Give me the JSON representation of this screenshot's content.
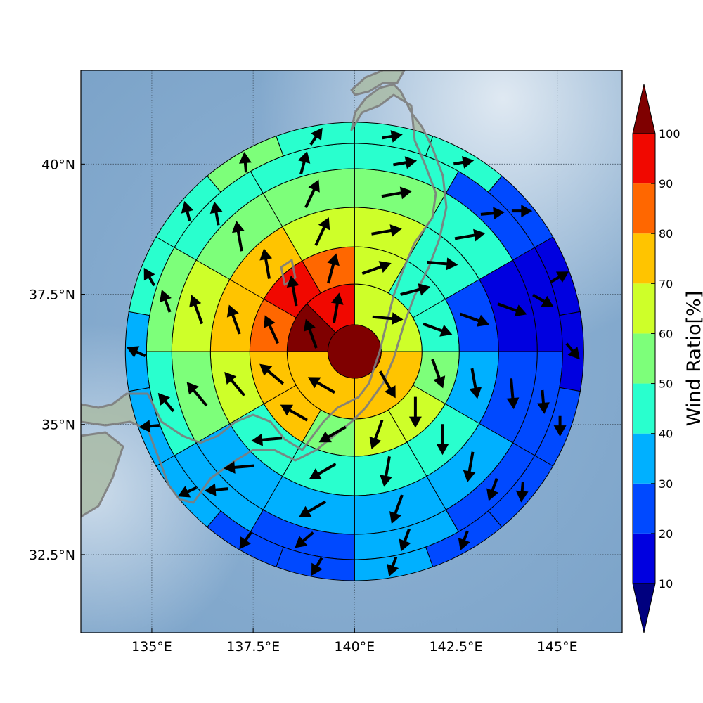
{
  "chart_data": {
    "type": "heatmap",
    "title": "",
    "xlabel": "",
    "ylabel": "",
    "projection": "polar sector grid over map",
    "center": {
      "lon": 140.0,
      "lat": 36.4
    },
    "xlim": [
      133.25,
      146.6
    ],
    "ylim": [
      31.0,
      41.8
    ],
    "x_ticks": [
      135,
      137.5,
      140,
      142.5,
      145
    ],
    "x_tick_labels": [
      "135°E",
      "137.5°E",
      "140°E",
      "142.5°E",
      "145°E"
    ],
    "y_ticks": [
      32.5,
      35,
      37.5,
      40
    ],
    "y_tick_labels": [
      "32.5°N",
      "35°N",
      "37.5°N",
      "40°N"
    ],
    "grid": true,
    "colorbar": {
      "label": "Wind Ratio[%]",
      "ticks": [
        10,
        20,
        30,
        40,
        50,
        60,
        70,
        80,
        90,
        100
      ],
      "tick_labels": [
        "10",
        "20",
        "30",
        "40",
        "50",
        "60",
        "70",
        "80",
        "90",
        "100"
      ],
      "extend": "both",
      "colors": [
        "#00007f",
        "#0000e0",
        "#0049ff",
        "#00b0ff",
        "#29ffce",
        "#7dff7a",
        "#ceff29",
        "#ffc400",
        "#ff6700",
        "#f10800",
        "#7f0000"
      ]
    },
    "center_cell": {
      "value": 100,
      "direction_deg": null
    },
    "rings": [
      {
        "ring": 1,
        "sectors": [
          {
            "bearing_start": 0,
            "bearing_end": 90,
            "value": 65,
            "direction_deg": 95
          },
          {
            "bearing_start": 90,
            "bearing_end": 180,
            "value": 75,
            "direction_deg": 150
          },
          {
            "bearing_start": 180,
            "bearing_end": 270,
            "value": 75,
            "direction_deg": 300
          },
          {
            "bearing_start": 270,
            "bearing_end": 315,
            "value": 100,
            "direction_deg": 340
          },
          {
            "bearing_start": 315,
            "bearing_end": 360,
            "value": 95,
            "direction_deg": 10
          }
        ]
      },
      {
        "ring": 2,
        "sectors": [
          {
            "bearing_start": 0,
            "bearing_end": 30,
            "value": 65,
            "direction_deg": 70
          },
          {
            "bearing_start": 30,
            "bearing_end": 60,
            "value": 45,
            "direction_deg": 75
          },
          {
            "bearing_start": 60,
            "bearing_end": 90,
            "value": 45,
            "direction_deg": 110
          },
          {
            "bearing_start": 90,
            "bearing_end": 120,
            "value": 55,
            "direction_deg": 160
          },
          {
            "bearing_start": 120,
            "bearing_end": 150,
            "value": 65,
            "direction_deg": 180
          },
          {
            "bearing_start": 150,
            "bearing_end": 180,
            "value": 65,
            "direction_deg": 200
          },
          {
            "bearing_start": 180,
            "bearing_end": 210,
            "value": 55,
            "direction_deg": 240
          },
          {
            "bearing_start": 210,
            "bearing_end": 240,
            "value": 75,
            "direction_deg": 300
          },
          {
            "bearing_start": 240,
            "bearing_end": 270,
            "value": 75,
            "direction_deg": 310
          },
          {
            "bearing_start": 270,
            "bearing_end": 300,
            "value": 85,
            "direction_deg": 335
          },
          {
            "bearing_start": 300,
            "bearing_end": 330,
            "value": 95,
            "direction_deg": 350
          },
          {
            "bearing_start": 330,
            "bearing_end": 360,
            "value": 85,
            "direction_deg": 15
          }
        ]
      },
      {
        "ring": 3,
        "sectors": [
          {
            "bearing_start": 0,
            "bearing_end": 30,
            "value": 65,
            "direction_deg": 80
          },
          {
            "bearing_start": 30,
            "bearing_end": 60,
            "value": 45,
            "direction_deg": 95
          },
          {
            "bearing_start": 60,
            "bearing_end": 90,
            "value": 25,
            "direction_deg": 110
          },
          {
            "bearing_start": 90,
            "bearing_end": 120,
            "value": 35,
            "direction_deg": 170
          },
          {
            "bearing_start": 120,
            "bearing_end": 150,
            "value": 45,
            "direction_deg": 180
          },
          {
            "bearing_start": 150,
            "bearing_end": 180,
            "value": 45,
            "direction_deg": 190
          },
          {
            "bearing_start": 180,
            "bearing_end": 210,
            "value": 45,
            "direction_deg": 240
          },
          {
            "bearing_start": 210,
            "bearing_end": 240,
            "value": 45,
            "direction_deg": 265
          },
          {
            "bearing_start": 240,
            "bearing_end": 270,
            "value": 65,
            "direction_deg": 320
          },
          {
            "bearing_start": 270,
            "bearing_end": 300,
            "value": 75,
            "direction_deg": 340
          },
          {
            "bearing_start": 300,
            "bearing_end": 330,
            "value": 75,
            "direction_deg": 350
          },
          {
            "bearing_start": 330,
            "bearing_end": 360,
            "value": 65,
            "direction_deg": 25
          }
        ]
      },
      {
        "ring": 4,
        "sectors": [
          {
            "bearing_start": 0,
            "bearing_end": 30,
            "value": 55,
            "direction_deg": 80
          },
          {
            "bearing_start": 30,
            "bearing_end": 60,
            "value": 45,
            "direction_deg": 80
          },
          {
            "bearing_start": 60,
            "bearing_end": 90,
            "value": 15,
            "direction_deg": 110
          },
          {
            "bearing_start": 90,
            "bearing_end": 120,
            "value": 25,
            "direction_deg": 175
          },
          {
            "bearing_start": 120,
            "bearing_end": 150,
            "value": 35,
            "direction_deg": 190
          },
          {
            "bearing_start": 150,
            "bearing_end": 180,
            "value": 35,
            "direction_deg": 200
          },
          {
            "bearing_start": 180,
            "bearing_end": 210,
            "value": 35,
            "direction_deg": 240
          },
          {
            "bearing_start": 210,
            "bearing_end": 240,
            "value": 35,
            "direction_deg": 265
          },
          {
            "bearing_start": 240,
            "bearing_end": 270,
            "value": 55,
            "direction_deg": 320
          },
          {
            "bearing_start": 270,
            "bearing_end": 300,
            "value": 65,
            "direction_deg": 340
          },
          {
            "bearing_start": 300,
            "bearing_end": 330,
            "value": 55,
            "direction_deg": 350
          },
          {
            "bearing_start": 330,
            "bearing_end": 360,
            "value": 55,
            "direction_deg": 25
          }
        ]
      },
      {
        "ring": 5,
        "sectors": [
          {
            "bearing_start": 0,
            "bearing_end": 30,
            "value": 45,
            "direction_deg": 80
          },
          {
            "bearing_start": 30,
            "bearing_end": 60,
            "value": 25,
            "direction_deg": 85
          },
          {
            "bearing_start": 60,
            "bearing_end": 90,
            "value": 15,
            "direction_deg": 120
          },
          {
            "bearing_start": 90,
            "bearing_end": 120,
            "value": 25,
            "direction_deg": 175
          },
          {
            "bearing_start": 120,
            "bearing_end": 150,
            "value": 25,
            "direction_deg": 200
          },
          {
            "bearing_start": 150,
            "bearing_end": 180,
            "value": 35,
            "direction_deg": 200
          },
          {
            "bearing_start": 180,
            "bearing_end": 210,
            "value": 25,
            "direction_deg": 230
          },
          {
            "bearing_start": 210,
            "bearing_end": 240,
            "value": 35,
            "direction_deg": 265
          },
          {
            "bearing_start": 240,
            "bearing_end": 270,
            "value": 45,
            "direction_deg": 320
          },
          {
            "bearing_start": 270,
            "bearing_end": 300,
            "value": 55,
            "direction_deg": 340
          },
          {
            "bearing_start": 300,
            "bearing_end": 330,
            "value": 45,
            "direction_deg": 350
          },
          {
            "bearing_start": 330,
            "bearing_end": 360,
            "value": 45,
            "direction_deg": 15
          }
        ]
      },
      {
        "ring": 6,
        "sectors": [
          {
            "bearing_start": 0,
            "bearing_end": 20,
            "value": 45,
            "direction_deg": 80
          },
          {
            "bearing_start": 20,
            "bearing_end": 40,
            "value": 45,
            "direction_deg": 80
          },
          {
            "bearing_start": 40,
            "bearing_end": 60,
            "value": 25,
            "direction_deg": 90
          },
          {
            "bearing_start": 60,
            "bearing_end": 80,
            "value": 15,
            "direction_deg": 60
          },
          {
            "bearing_start": 80,
            "bearing_end": 100,
            "value": 15,
            "direction_deg": 140
          },
          {
            "bearing_start": 100,
            "bearing_end": 120,
            "value": 25,
            "direction_deg": 180
          },
          {
            "bearing_start": 120,
            "bearing_end": 140,
            "value": 25,
            "direction_deg": 185
          },
          {
            "bearing_start": 140,
            "bearing_end": 160,
            "value": 25,
            "direction_deg": 200
          },
          {
            "bearing_start": 160,
            "bearing_end": 180,
            "value": 35,
            "direction_deg": 200
          },
          {
            "bearing_start": 180,
            "bearing_end": 200,
            "value": 25,
            "direction_deg": 210
          },
          {
            "bearing_start": 200,
            "bearing_end": 220,
            "value": 25,
            "direction_deg": 215
          },
          {
            "bearing_start": 220,
            "bearing_end": 240,
            "value": 35,
            "direction_deg": 245
          },
          {
            "bearing_start": 240,
            "bearing_end": 260,
            "value": 35,
            "direction_deg": 265
          },
          {
            "bearing_start": 260,
            "bearing_end": 280,
            "value": 35,
            "direction_deg": 295
          },
          {
            "bearing_start": 280,
            "bearing_end": 300,
            "value": 45,
            "direction_deg": 330
          },
          {
            "bearing_start": 300,
            "bearing_end": 320,
            "value": 45,
            "direction_deg": 345
          },
          {
            "bearing_start": 320,
            "bearing_end": 340,
            "value": 55,
            "direction_deg": 355
          },
          {
            "bearing_start": 340,
            "bearing_end": 360,
            "value": 45,
            "direction_deg": 35
          }
        ]
      }
    ]
  },
  "colors": {
    "ocean": "#86acce",
    "land": "#a9bba6",
    "coastline": "#7d7d7d",
    "grid": "#3c4c5c",
    "cell_edge": "#000000",
    "arrow": "#000000"
  }
}
